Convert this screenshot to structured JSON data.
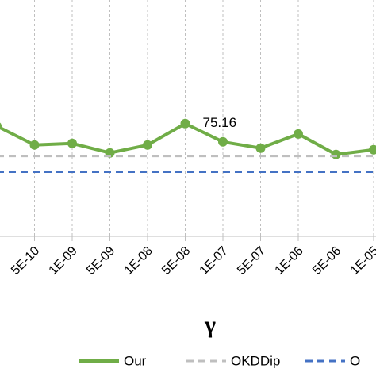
{
  "chart_data": {
    "type": "line",
    "x_label": "γ",
    "categories": [
      null,
      "5E-10",
      "1E-09",
      "5E-09",
      "1E-08",
      "5E-08",
      "1E-07",
      "5E-07",
      "1E-06",
      "5E-06",
      "1E-05"
    ],
    "series": [
      {
        "name": "Our",
        "color": "#70ad47",
        "style": "solid",
        "values": [
          75.0,
          73.8,
          73.9,
          73.3,
          73.8,
          75.16,
          74.0,
          73.6,
          74.5,
          73.2,
          73.5
        ]
      },
      {
        "name": "OKDDip",
        "color": "#bfbfbf",
        "style": "dashed",
        "values": [
          73.1,
          73.1,
          73.1,
          73.1,
          73.1,
          73.1,
          73.1,
          73.1,
          73.1,
          73.1,
          73.1
        ]
      },
      {
        "name": "O",
        "color": "#4472c4",
        "style": "dashed",
        "values": [
          72.1,
          72.1,
          72.1,
          72.1,
          72.1,
          72.1,
          72.1,
          72.1,
          72.1,
          72.1,
          72.1
        ]
      }
    ],
    "ylim": [
      68,
      83
    ],
    "grid": true,
    "annotated_point": [
      0,
      5
    ]
  }
}
